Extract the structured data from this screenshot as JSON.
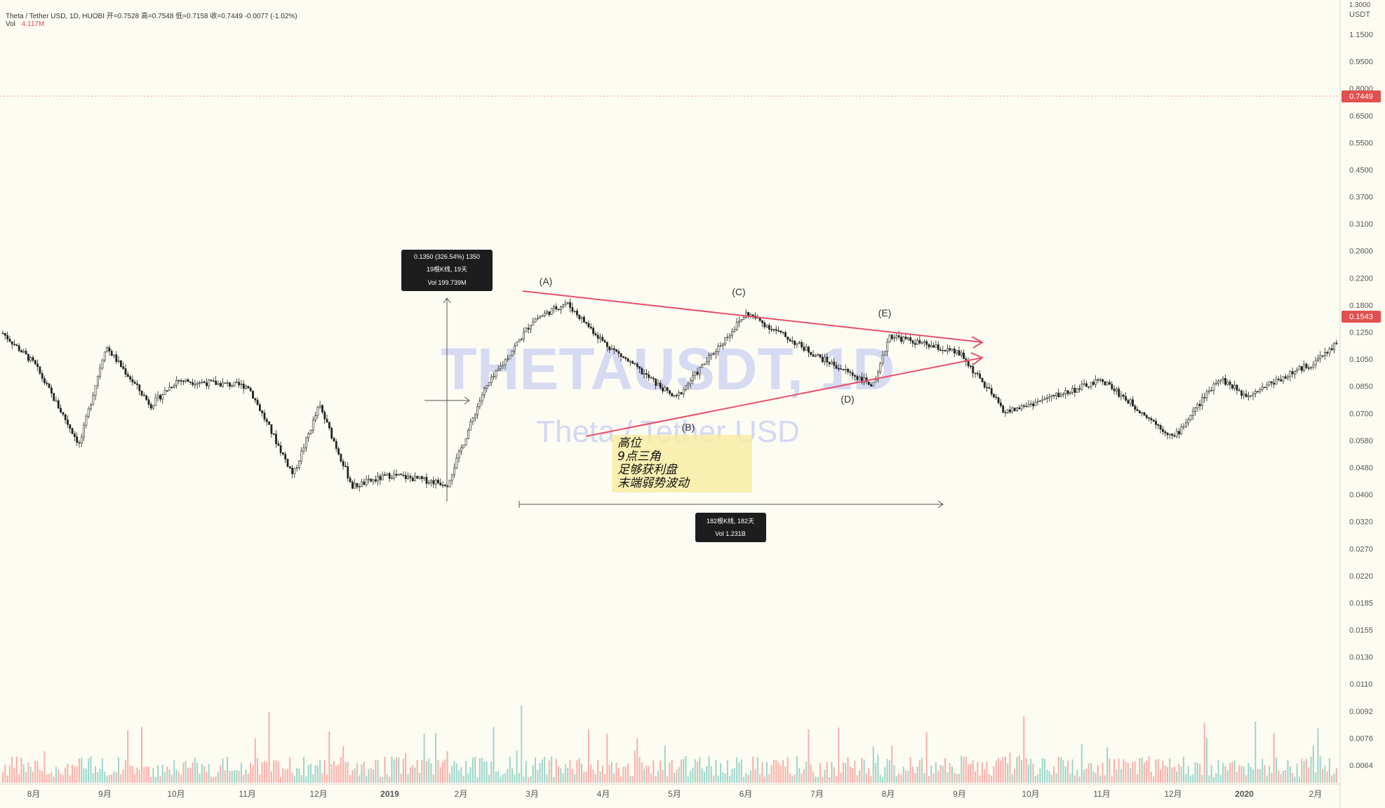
{
  "header": {
    "line1": "Theta / Tether USD, 1D, HUOBI  开=0.7528  高=0.7548  低=0.7158  收=0.7449  -0.0077 (-1.02%)",
    "vol_label": "Vol",
    "vol_value": "4.117M"
  },
  "watermark": {
    "symbol": "THETAUSDT, 1D",
    "name": "Theta / Tether USD"
  },
  "axis": {
    "currency": "USDT",
    "top_partial": "1.3000",
    "y_ticks": [
      "1.1500",
      "0.9500",
      "0.8000",
      "0.6500",
      "0.5500",
      "0.4500",
      "0.3700",
      "0.3100",
      "0.2600",
      "0.2200",
      "0.1800",
      "0.1250",
      "0.1050",
      "0.0850",
      "0.0700",
      "0.0580",
      "0.0480",
      "0.0400",
      "0.0320",
      "0.0270",
      "0.0220",
      "0.0185",
      "0.0155",
      "0.0130",
      "0.0110",
      "0.0092",
      "0.0076",
      "0.0064"
    ],
    "x_ticks": [
      "8月",
      "9月",
      "10月",
      "11月",
      "12月",
      "2019",
      "2月",
      "3月",
      "4月",
      "5月",
      "6月",
      "7月",
      "8月",
      "9月",
      "10月",
      "11月",
      "12月",
      "2020",
      "2月"
    ]
  },
  "price_badges": {
    "current": "0.7449",
    "last": "0.1543",
    "current_color": "#e0504f",
    "last_color": "#e0504f"
  },
  "annotations": {
    "measure1": [
      "0.1350 (326.54%) 1350",
      "19根K线, 19天",
      "Vol 199.739M"
    ],
    "measure2": [
      "182根K线, 182天",
      "Vol 1.231B"
    ],
    "note": [
      "高位",
      "9点三角",
      "足够获利盘",
      "末端弱势波动"
    ],
    "points": [
      "(A)",
      "(B)",
      "(C)",
      "(D)",
      "(E)"
    ]
  },
  "chart_data": {
    "type": "candlestick",
    "title": "Theta / Tether USD, 1D, HUOBI",
    "yscale": "log",
    "ylim": [
      0.006,
      1.3
    ],
    "x_range": [
      "2018-07",
      "2020-02"
    ],
    "colors": {
      "up": "#26a69a",
      "down": "#ef5350",
      "body": "#222222",
      "trendline": "#e8506a"
    },
    "close_path": [
      {
        "x": "2018-07",
        "y": 0.18
      },
      {
        "x": "2018-08",
        "y": 0.11
      },
      {
        "x": "2018-08-20",
        "y": 0.062
      },
      {
        "x": "2018-09",
        "y": 0.125
      },
      {
        "x": "2018-09-20",
        "y": 0.082
      },
      {
        "x": "2018-10",
        "y": 0.098
      },
      {
        "x": "2018-11",
        "y": 0.094
      },
      {
        "x": "2018-11-20",
        "y": 0.05
      },
      {
        "x": "2018-12",
        "y": 0.082
      },
      {
        "x": "2018-12-15",
        "y": 0.046
      },
      {
        "x": "2019-01",
        "y": 0.05
      },
      {
        "x": "2019-01-25",
        "y": 0.047
      },
      {
        "x": "2019-02-10",
        "y": 0.09
      },
      {
        "x": "2019-03",
        "y": 0.15
      },
      {
        "x": "2019-03-15",
        "y": 0.17
      },
      {
        "x": "2019-04",
        "y": 0.128
      },
      {
        "x": "2019-05",
        "y": 0.086
      },
      {
        "x": "2019-06",
        "y": 0.158
      },
      {
        "x": "2019-07",
        "y": 0.116
      },
      {
        "x": "2019-07-25",
        "y": 0.094
      },
      {
        "x": "2019-08",
        "y": 0.135
      },
      {
        "x": "2019-09",
        "y": 0.118
      },
      {
        "x": "2019-09-20",
        "y": 0.078
      },
      {
        "x": "2019-11",
        "y": 0.098
      },
      {
        "x": "2019-12",
        "y": 0.065
      },
      {
        "x": "2019-12-20",
        "y": 0.1
      },
      {
        "x": "2020-01",
        "y": 0.088
      },
      {
        "x": "2020-02",
        "y": 0.112
      },
      {
        "x": "2020-02-20",
        "y": 0.15
      }
    ],
    "pattern": "triangle",
    "triangle_points": [
      {
        "label": "(A)",
        "x": "2019-03-10",
        "y": 0.178
      },
      {
        "label": "(B)",
        "x": "2019-05-15",
        "y": 0.078
      },
      {
        "label": "(C)",
        "x": "2019-06-10",
        "y": 0.165
      },
      {
        "label": "(D)",
        "x": "2019-07-20",
        "y": 0.095
      },
      {
        "label": "(E)",
        "x": "2019-08-10",
        "y": 0.145
      }
    ]
  }
}
